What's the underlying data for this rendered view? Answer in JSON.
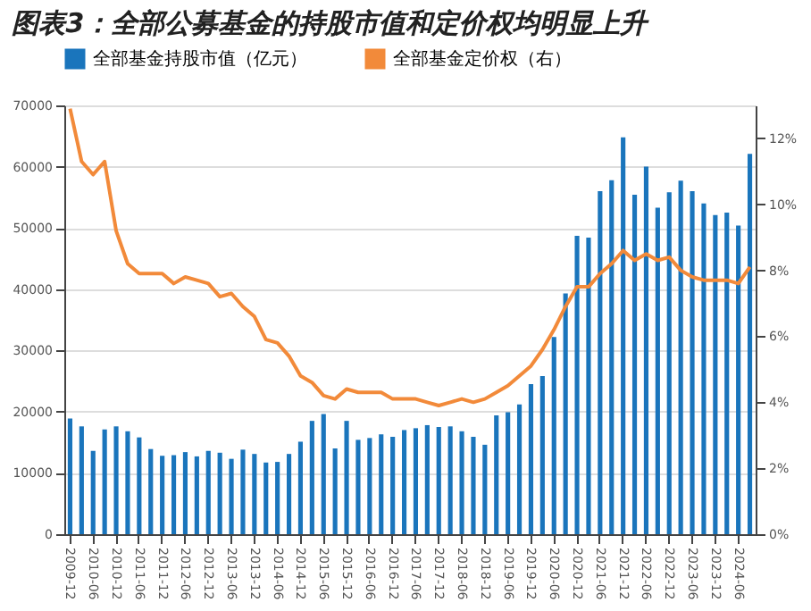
{
  "chart_data": {
    "type": "bar",
    "title": "图表3：全部公募基金的持股市值和定价权均明显上升",
    "categories": [
      "2009-12",
      null,
      "2010-06",
      null,
      "2010-12",
      null,
      "2011-06",
      null,
      "2011-12",
      null,
      "2012-06",
      null,
      "2012-12",
      null,
      "2013-06",
      null,
      "2013-12",
      null,
      "2014-06",
      null,
      "2014-12",
      null,
      "2015-06",
      null,
      "2015-12",
      null,
      "2016-06",
      null,
      "2016-12",
      null,
      "2017-06",
      null,
      "2017-12",
      null,
      "2018-06",
      null,
      "2018-12",
      null,
      "2019-06",
      null,
      "2019-12",
      null,
      "2020-06",
      null,
      "2020-12",
      null,
      "2021-06",
      null,
      "2021-12",
      null,
      "2022-06",
      null,
      "2022-12",
      null,
      "2023-06",
      null,
      "2023-12",
      null,
      "2024-06",
      null
    ],
    "series": [
      {
        "name": "全部基金持股市值（亿元）",
        "color": "#1a75bc",
        "values": [
          18900,
          17600,
          13600,
          17100,
          17600,
          16800,
          15800,
          13900,
          12800,
          12900,
          13400,
          12700,
          13600,
          13300,
          12300,
          13800,
          13100,
          11700,
          11800,
          13100,
          15100,
          18500,
          19600,
          14000,
          18500,
          15400,
          15700,
          16300,
          15900,
          17000,
          17300,
          17800,
          17500,
          17600,
          16800,
          15900,
          14600,
          19400,
          19900,
          21200,
          24500,
          25800,
          32200,
          39300,
          48700,
          48400,
          56000,
          57800,
          64800,
          55400,
          60000,
          53300,
          55800,
          57700,
          56000,
          54000,
          52100,
          52500,
          50400,
          62100
        ]
      },
      {
        "name": "全部基金定价权（右）",
        "type": "line",
        "axis": "y2",
        "color": "#f28a3a",
        "values": [
          12.9,
          11.3,
          10.9,
          11.3,
          9.2,
          8.2,
          7.9,
          7.9,
          7.9,
          7.6,
          7.8,
          7.7,
          7.6,
          7.2,
          7.3,
          6.9,
          6.6,
          5.9,
          5.8,
          5.4,
          4.8,
          4.6,
          4.2,
          4.1,
          4.4,
          4.3,
          4.3,
          4.3,
          4.1,
          4.1,
          4.1,
          4.0,
          3.9,
          4.0,
          4.1,
          4.0,
          4.1,
          4.3,
          4.5,
          4.8,
          5.1,
          5.6,
          6.2,
          6.9,
          7.5,
          7.5,
          7.9,
          8.2,
          8.6,
          8.3,
          8.5,
          8.3,
          8.4,
          8.0,
          7.8,
          7.7,
          7.7,
          7.7,
          7.6,
          8.1
        ]
      }
    ],
    "ylim": [
      0,
      70000
    ],
    "yticks": [
      0,
      10000,
      20000,
      30000,
      40000,
      50000,
      60000,
      70000
    ],
    "y2lim": [
      0,
      13
    ],
    "y2ticks": [
      {
        "value": 0,
        "label": "0%"
      },
      {
        "value": 2,
        "label": "2%"
      },
      {
        "value": 4,
        "label": "4%"
      },
      {
        "value": 6,
        "label": "6%"
      },
      {
        "value": 8,
        "label": "8%"
      },
      {
        "value": 10,
        "label": "10%"
      },
      {
        "value": 12,
        "label": "12%"
      }
    ],
    "grid": "y",
    "legend": "top"
  }
}
